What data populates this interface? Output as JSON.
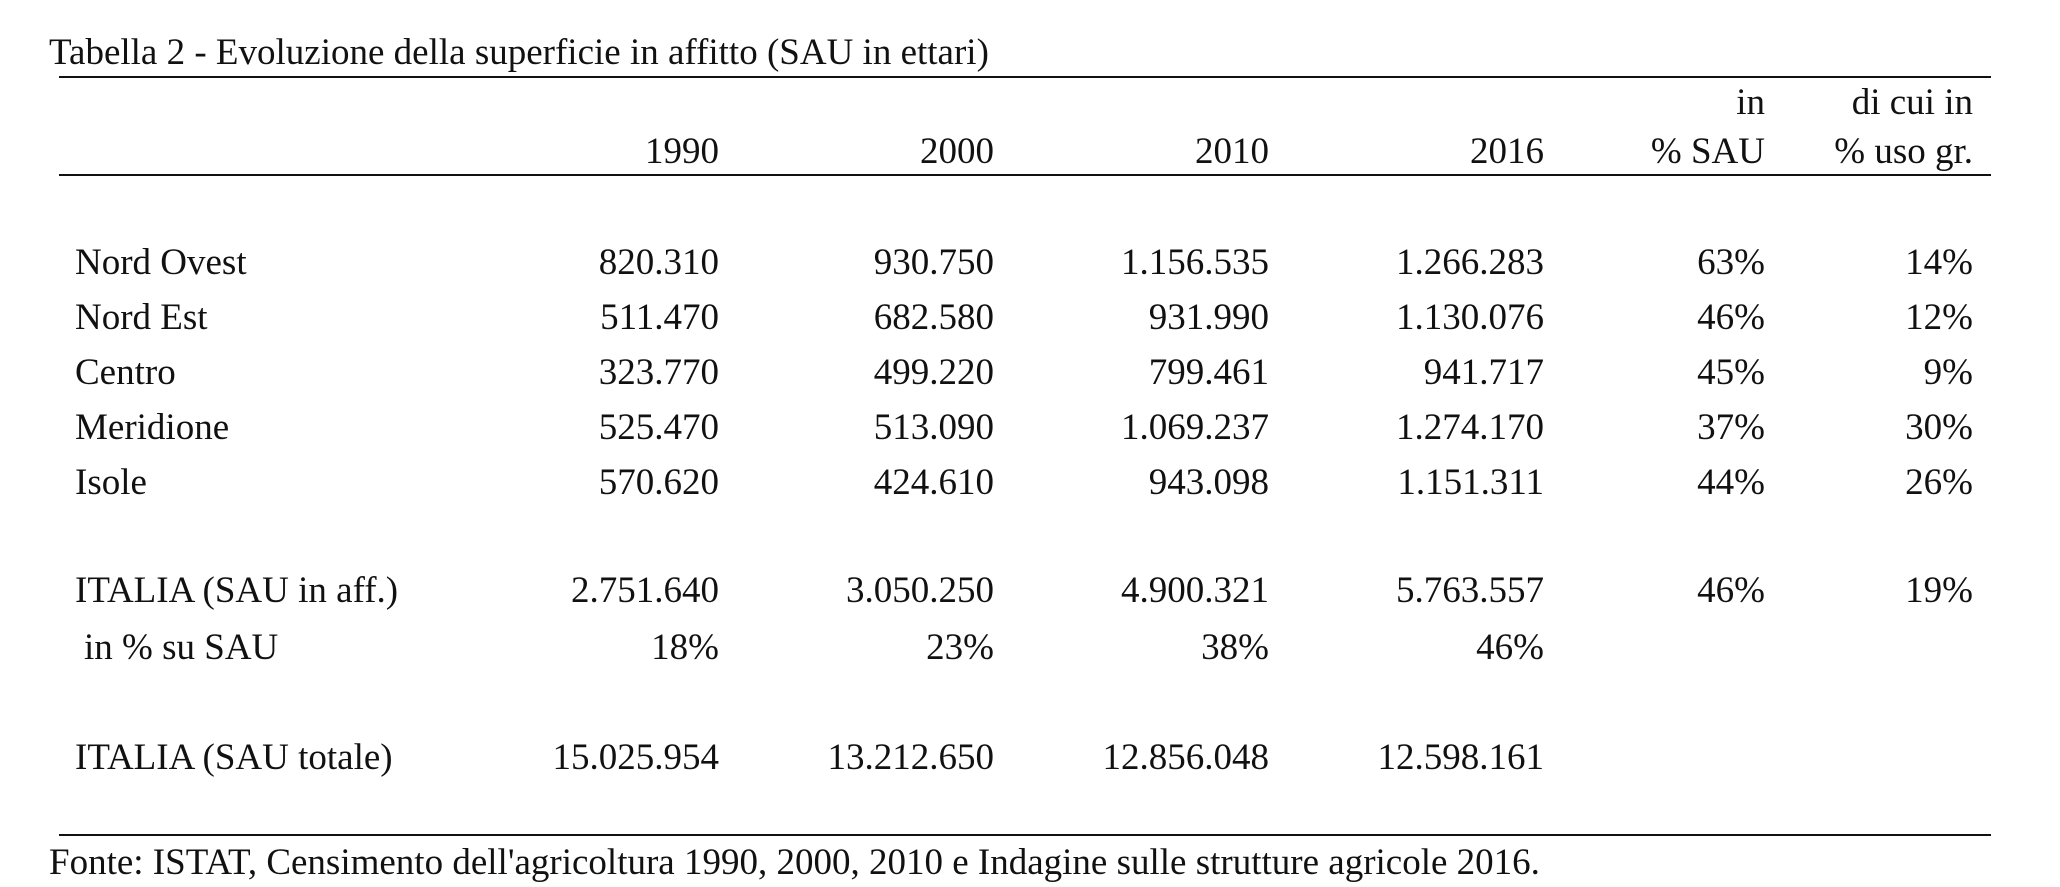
{
  "title": "Tabella 2 - Evoluzione della superficie in affitto (SAU in ettari)",
  "header": {
    "col1": "1990",
    "col2": "2000",
    "col3": "2010",
    "col4": "2016",
    "col5_line1": "in",
    "col5_line2": "% SAU",
    "col6_line1": "di cui in",
    "col6_line2": "% uso gr."
  },
  "rows": [
    {
      "label": "Nord Ovest",
      "v1990": "820.310",
      "v2000": "930.750",
      "v2010": "1.156.535",
      "v2016": "1.266.283",
      "pct_sau": "63%",
      "pct_uso": "14%"
    },
    {
      "label": "Nord Est",
      "v1990": "511.470",
      "v2000": "682.580",
      "v2010": "931.990",
      "v2016": "1.130.076",
      "pct_sau": "46%",
      "pct_uso": "12%"
    },
    {
      "label": "Centro",
      "v1990": "323.770",
      "v2000": "499.220",
      "v2010": "799.461",
      "v2016": "941.717",
      "pct_sau": "45%",
      "pct_uso": "9%"
    },
    {
      "label": "Meridione",
      "v1990": "525.470",
      "v2000": "513.090",
      "v2010": "1.069.237",
      "v2016": "1.274.170",
      "pct_sau": "37%",
      "pct_uso": "30%"
    },
    {
      "label": "Isole",
      "v1990": "570.620",
      "v2000": "424.610",
      "v2010": "943.098",
      "v2016": "1.151.311",
      "pct_sau": "44%",
      "pct_uso": "26%"
    }
  ],
  "italia_aff": {
    "label": "ITALIA (SAU in aff.)",
    "v1990": "2.751.640",
    "v2000": "3.050.250",
    "v2010": "4.900.321",
    "v2016": "5.763.557",
    "pct_sau": "46%",
    "pct_uso": "19%"
  },
  "in_pct": {
    "label": "in % su SAU",
    "v1990": "18%",
    "v2000": "23%",
    "v2010": "38%",
    "v2016": "46%"
  },
  "italia_tot": {
    "label": "ITALIA (SAU totale)",
    "v1990": "15.025.954",
    "v2000": "13.212.650",
    "v2010": "12.856.048",
    "v2016": "12.598.161"
  },
  "source": "Fonte: ISTAT, Censimento dell'agricoltura 1990, 2000, 2010 e Indagine sulle strutture agricole 2016."
}
